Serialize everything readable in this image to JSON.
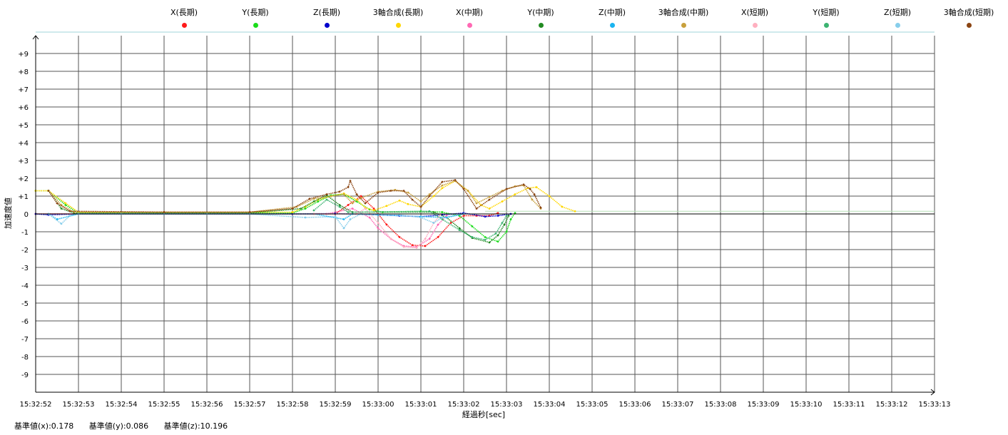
{
  "chart_data": {
    "type": "scatter",
    "xlabel": "経過秒[sec]",
    "ylabel": "加速度値",
    "x_ticks": [
      "15:32:52",
      "15:32:53",
      "15:32:54",
      "15:32:55",
      "15:32:56",
      "15:32:57",
      "15:32:58",
      "15:32:59",
      "15:33:00",
      "15:33:01",
      "15:33:02",
      "15:33:03",
      "15:33:04",
      "15:33:05",
      "15:33:06",
      "15:33:07",
      "15:33:08",
      "15:33:09",
      "15:33:10",
      "15:33:11",
      "15:33:12",
      "15:33:13"
    ],
    "y_ticks": [
      "+9",
      "+8",
      "+7",
      "+6",
      "+5",
      "+4",
      "+3",
      "+2",
      "+1",
      "0",
      "-1",
      "-2",
      "-3",
      "-4",
      "-5",
      "-6",
      "-7",
      "-8",
      "-9"
    ],
    "xlim": [
      0,
      21
    ],
    "ylim": [
      -10,
      10
    ],
    "grid": true,
    "legend_position": "top",
    "series": [
      {
        "name": "X(長期)",
        "color": "#ff1a1a",
        "points": [
          [
            0,
            0
          ],
          [
            3,
            0
          ],
          [
            5,
            0
          ],
          [
            6,
            0
          ],
          [
            6.5,
            0
          ],
          [
            7,
            0
          ],
          [
            7.3,
            0.5
          ],
          [
            7.6,
            1
          ],
          [
            7.9,
            0.3
          ],
          [
            8.2,
            -0.6
          ],
          [
            8.5,
            -1.3
          ],
          [
            8.8,
            -1.75
          ],
          [
            9.1,
            -1.8
          ],
          [
            9.4,
            -1.3
          ],
          [
            9.7,
            -0.5
          ],
          [
            10.0,
            -0.1
          ],
          [
            10.3,
            -0.1
          ],
          [
            10.6,
            -0.1
          ],
          [
            10.8,
            0.05
          ]
        ]
      },
      {
        "name": "Y(長期)",
        "color": "#1adc1a",
        "points": [
          [
            0,
            1.3
          ],
          [
            0.3,
            1.3
          ],
          [
            0.7,
            0.5
          ],
          [
            1.0,
            0.05
          ],
          [
            3,
            0.05
          ],
          [
            5,
            0.05
          ],
          [
            6,
            0.05
          ],
          [
            6.3,
            0.3
          ],
          [
            6.6,
            0.7
          ],
          [
            6.9,
            1.05
          ],
          [
            7.2,
            1.1
          ],
          [
            7.5,
            0.7
          ],
          [
            7.8,
            0.25
          ],
          [
            8.1,
            0.1
          ],
          [
            9.0,
            0.15
          ],
          [
            9.5,
            0.1
          ],
          [
            9.9,
            -0.1
          ],
          [
            10.2,
            -0.7
          ],
          [
            10.5,
            -1.3
          ],
          [
            10.8,
            -1.55
          ],
          [
            11.0,
            -1.0
          ],
          [
            11.1,
            -0.3
          ],
          [
            11.2,
            0.05
          ]
        ]
      },
      {
        "name": "Z(長期)",
        "color": "#0000cc",
        "points": [
          [
            0,
            0
          ],
          [
            0.3,
            -0.05
          ],
          [
            1,
            0
          ],
          [
            3,
            0
          ],
          [
            5,
            0
          ],
          [
            6,
            0
          ],
          [
            7,
            0.02
          ],
          [
            8,
            -0.05
          ],
          [
            8.5,
            -0.1
          ],
          [
            9,
            -0.15
          ],
          [
            9.5,
            -0.05
          ],
          [
            10,
            0.05
          ],
          [
            10.5,
            -0.15
          ],
          [
            10.8,
            -0.1
          ],
          [
            11.1,
            0
          ]
        ]
      },
      {
        "name": "3軸合成(長期)",
        "color": "#ffd700",
        "points": [
          [
            0,
            1.3
          ],
          [
            0.3,
            1.3
          ],
          [
            0.7,
            0.6
          ],
          [
            1.0,
            0.1
          ],
          [
            3,
            0.1
          ],
          [
            5,
            0.1
          ],
          [
            6,
            0.1
          ],
          [
            6.3,
            0.4
          ],
          [
            6.6,
            0.8
          ],
          [
            6.9,
            1.0
          ],
          [
            7.2,
            1.15
          ],
          [
            7.5,
            0.8
          ],
          [
            7.7,
            0.35
          ],
          [
            7.9,
            0.2
          ],
          [
            8.2,
            0.45
          ],
          [
            8.5,
            0.75
          ],
          [
            8.7,
            0.55
          ],
          [
            9.0,
            0.4
          ],
          [
            9.3,
            1.0
          ],
          [
            9.5,
            1.45
          ],
          [
            9.8,
            1.85
          ],
          [
            10.1,
            1.3
          ],
          [
            10.4,
            0.5
          ],
          [
            10.6,
            0.3
          ],
          [
            10.9,
            0.7
          ],
          [
            11.2,
            1.1
          ],
          [
            11.5,
            1.45
          ],
          [
            11.7,
            1.5
          ],
          [
            12.0,
            1.0
          ],
          [
            12.3,
            0.4
          ],
          [
            12.6,
            0.15
          ]
        ]
      },
      {
        "name": "X(中期)",
        "color": "#ff69b4",
        "points": [
          [
            0.3,
            0
          ],
          [
            1,
            0
          ],
          [
            3,
            0
          ],
          [
            5,
            0
          ],
          [
            6.8,
            0
          ],
          [
            7.4,
            0.3
          ],
          [
            7.8,
            -0.2
          ],
          [
            8.0,
            -0.8
          ],
          [
            8.3,
            -1.4
          ],
          [
            8.6,
            -1.8
          ],
          [
            8.9,
            -1.85
          ],
          [
            9.2,
            -1.4
          ],
          [
            9.4,
            -0.6
          ],
          [
            9.6,
            -0.1
          ]
        ]
      },
      {
        "name": "Y(中期)",
        "color": "#228b22",
        "points": [
          [
            0.3,
            1.3
          ],
          [
            0.6,
            0.3
          ],
          [
            0.9,
            0.05
          ],
          [
            3,
            0.05
          ],
          [
            5,
            0.05
          ],
          [
            6.2,
            0.3
          ],
          [
            6.5,
            0.7
          ],
          [
            6.8,
            1.05
          ],
          [
            7.1,
            0.5
          ],
          [
            7.4,
            0.1
          ],
          [
            9.3,
            0.1
          ],
          [
            9.6,
            -0.2
          ],
          [
            9.9,
            -0.8
          ],
          [
            10.2,
            -1.35
          ],
          [
            10.6,
            -1.6
          ],
          [
            10.8,
            -1.2
          ],
          [
            10.95,
            -0.6
          ],
          [
            11.05,
            -0.1
          ]
        ]
      },
      {
        "name": "Z(中期)",
        "color": "#1ab4f0",
        "points": [
          [
            0.3,
            0
          ],
          [
            0.5,
            -0.3
          ],
          [
            1,
            0
          ],
          [
            3,
            0
          ],
          [
            5,
            0
          ],
          [
            6.5,
            0
          ],
          [
            7.2,
            -0.3
          ],
          [
            7.4,
            0
          ],
          [
            8,
            -0.05
          ],
          [
            9.0,
            -0.15
          ],
          [
            9.6,
            -0.2
          ],
          [
            10.0,
            0
          ]
        ]
      },
      {
        "name": "3軸合成(中期)",
        "color": "#c8a03c",
        "points": [
          [
            0.3,
            1.3
          ],
          [
            0.6,
            0.5
          ],
          [
            0.9,
            0.1
          ],
          [
            3,
            0.1
          ],
          [
            5,
            0.1
          ],
          [
            6.1,
            0.4
          ],
          [
            6.5,
            0.85
          ],
          [
            6.9,
            1.0
          ],
          [
            7.2,
            1.1
          ],
          [
            7.4,
            0.6
          ],
          [
            7.6,
            0.9
          ],
          [
            8.0,
            1.25
          ],
          [
            8.4,
            1.35
          ],
          [
            8.7,
            1.2
          ],
          [
            9.0,
            0.7
          ],
          [
            9.2,
            1.1
          ],
          [
            9.5,
            1.6
          ],
          [
            9.8,
            1.85
          ],
          [
            10.1,
            1.3
          ],
          [
            10.3,
            0.6
          ],
          [
            10.6,
            0.95
          ],
          [
            10.9,
            1.3
          ],
          [
            11.2,
            1.55
          ],
          [
            11.4,
            1.6
          ],
          [
            11.6,
            0.8
          ],
          [
            11.8,
            0.3
          ]
        ]
      },
      {
        "name": "X(短期)",
        "color": "#ffb0c0",
        "points": [
          [
            6.5,
            0
          ],
          [
            7.5,
            0
          ],
          [
            7.7,
            0.3
          ],
          [
            8.0,
            -0.5
          ],
          [
            8.3,
            -1.4
          ],
          [
            8.6,
            -1.85
          ],
          [
            8.9,
            -1.9
          ],
          [
            9.1,
            -1.4
          ],
          [
            9.3,
            -0.5
          ],
          [
            9.45,
            -0.05
          ]
        ]
      },
      {
        "name": "Y(短期)",
        "color": "#3cb371",
        "points": [
          [
            6.5,
            0.2
          ],
          [
            6.8,
            0.8
          ],
          [
            7.1,
            0.4
          ],
          [
            7.3,
            0.1
          ],
          [
            9.2,
            0.15
          ],
          [
            9.5,
            -0.3
          ],
          [
            9.9,
            -0.9
          ],
          [
            10.2,
            -1.3
          ],
          [
            10.5,
            -1.45
          ],
          [
            10.75,
            -1.1
          ],
          [
            10.9,
            -0.5
          ],
          [
            11.0,
            -0.1
          ]
        ]
      },
      {
        "name": "Z(短期)",
        "color": "#87ceeb",
        "points": [
          [
            0.3,
            0
          ],
          [
            0.6,
            -0.55
          ],
          [
            0.8,
            -0.1
          ],
          [
            1,
            0
          ],
          [
            2,
            0
          ],
          [
            3,
            0
          ],
          [
            4,
            0
          ],
          [
            5,
            0
          ],
          [
            6.3,
            -0.2
          ],
          [
            7.0,
            -0.15
          ],
          [
            7.2,
            -0.8
          ],
          [
            7.35,
            -0.3
          ],
          [
            7.6,
            0
          ],
          [
            8.5,
            -0.05
          ],
          [
            9.0,
            -0.2
          ],
          [
            9.3,
            -0.5
          ],
          [
            9.5,
            -0.2
          ],
          [
            10.0,
            0
          ]
        ]
      },
      {
        "name": "3軸合成(短期)",
        "color": "#8b4513",
        "points": [
          [
            0.3,
            1.3
          ],
          [
            0.5,
            0.6
          ],
          [
            0.8,
            0.15
          ],
          [
            3,
            0.1
          ],
          [
            5,
            0.1
          ],
          [
            6.0,
            0.3
          ],
          [
            6.4,
            0.85
          ],
          [
            6.8,
            1.1
          ],
          [
            7.1,
            1.25
          ],
          [
            7.3,
            1.5
          ],
          [
            7.35,
            1.85
          ],
          [
            7.5,
            1.1
          ],
          [
            7.7,
            0.6
          ],
          [
            8.0,
            1.2
          ],
          [
            8.3,
            1.3
          ],
          [
            8.6,
            1.3
          ],
          [
            8.8,
            0.8
          ],
          [
            9.0,
            0.4
          ],
          [
            9.2,
            1.0
          ],
          [
            9.5,
            1.8
          ],
          [
            9.8,
            1.9
          ],
          [
            10.0,
            1.4
          ],
          [
            10.3,
            0.3
          ],
          [
            10.6,
            0.8
          ],
          [
            11.0,
            1.4
          ],
          [
            11.4,
            1.65
          ],
          [
            11.55,
            1.4
          ],
          [
            11.65,
            1.1
          ],
          [
            11.8,
            0.35
          ]
        ]
      }
    ]
  },
  "footer": {
    "base_x": "基準値(x):0.178",
    "base_y": "基準値(y):0.086",
    "base_z": "基準値(z):10.196"
  }
}
